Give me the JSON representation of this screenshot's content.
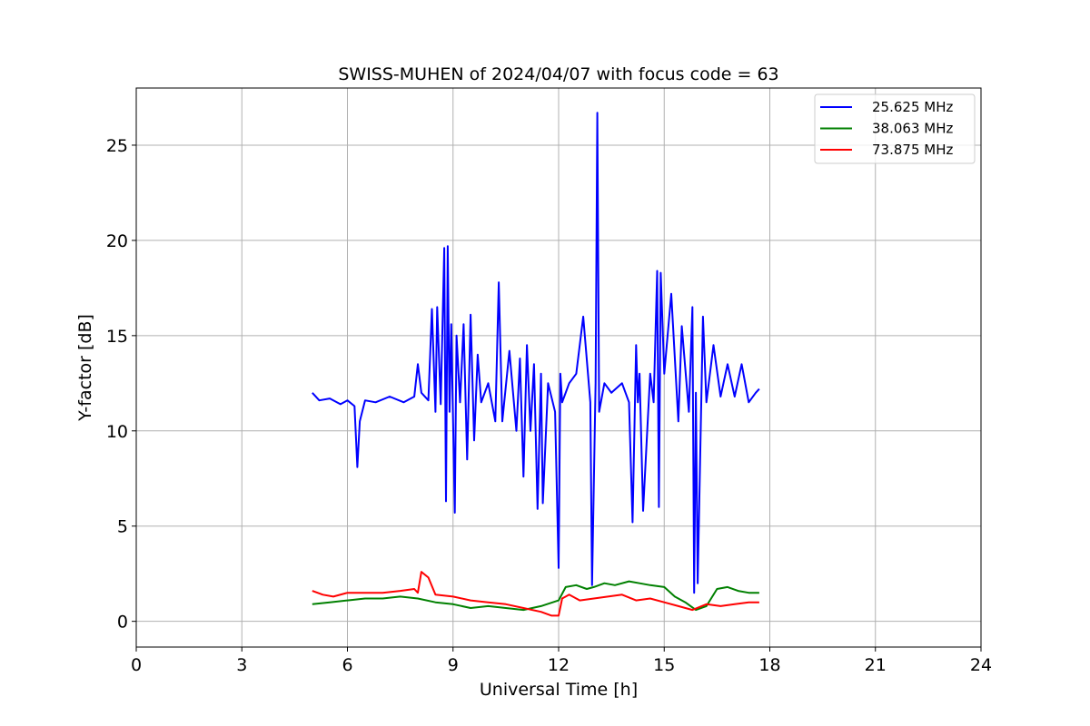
{
  "chart_data": {
    "type": "line",
    "title": "SWISS-MUHEN of 2024/04/07 with focus code = 63",
    "xlabel": "Universal Time [h]",
    "ylabel": "Y-factor [dB]",
    "xlim": [
      0,
      24
    ],
    "ylim": [
      -1.35,
      28
    ],
    "xticks": [
      0,
      3,
      6,
      9,
      12,
      15,
      18,
      21,
      24
    ],
    "yticks": [
      0,
      5,
      10,
      15,
      20,
      25
    ],
    "grid": true,
    "legend_position": "top-right",
    "series": [
      {
        "name": "25.625 MHz",
        "color": "#0000ff",
        "x": [
          5.0,
          5.2,
          5.5,
          5.8,
          6.0,
          6.2,
          6.28,
          6.35,
          6.5,
          6.8,
          7.2,
          7.6,
          7.9,
          8.0,
          8.1,
          8.3,
          8.4,
          8.5,
          8.55,
          8.65,
          8.75,
          8.8,
          8.85,
          8.9,
          8.95,
          9.05,
          9.1,
          9.2,
          9.3,
          9.4,
          9.5,
          9.6,
          9.7,
          9.8,
          10.0,
          10.2,
          10.3,
          10.4,
          10.6,
          10.8,
          10.9,
          11.0,
          11.1,
          11.2,
          11.3,
          11.4,
          11.5,
          11.55,
          11.7,
          11.9,
          12.0,
          12.05,
          12.1,
          12.3,
          12.5,
          12.7,
          12.9,
          12.95,
          13.05,
          13.1,
          13.15,
          13.3,
          13.5,
          13.8,
          14.0,
          14.1,
          14.2,
          14.25,
          14.3,
          14.4,
          14.6,
          14.7,
          14.8,
          14.85,
          14.9,
          15.0,
          15.2,
          15.4,
          15.5,
          15.7,
          15.8,
          15.85,
          15.9,
          15.95,
          16.1,
          16.2,
          16.4,
          16.6,
          16.8,
          17.0,
          17.2,
          17.4,
          17.6,
          17.7
        ],
        "y": [
          12.0,
          11.6,
          11.7,
          11.4,
          11.6,
          11.3,
          8.1,
          10.5,
          11.6,
          11.5,
          11.8,
          11.5,
          11.8,
          13.5,
          12.0,
          11.6,
          16.4,
          11.0,
          16.5,
          11.4,
          19.6,
          6.3,
          19.7,
          11.0,
          15.6,
          5.7,
          15.0,
          11.5,
          15.6,
          8.5,
          16.1,
          9.5,
          14.0,
          11.5,
          12.5,
          10.5,
          17.8,
          10.5,
          14.2,
          10.0,
          13.8,
          7.6,
          14.5,
          10.0,
          13.5,
          5.9,
          13.0,
          6.2,
          12.5,
          11.0,
          2.8,
          13.0,
          11.5,
          12.5,
          13.0,
          16.0,
          11.5,
          1.9,
          12.5,
          26.7,
          11.0,
          12.5,
          12.0,
          12.5,
          11.5,
          5.2,
          14.5,
          11.5,
          13.0,
          5.8,
          13.0,
          11.5,
          18.4,
          6.0,
          18.3,
          13.0,
          17.2,
          10.5,
          15.5,
          11.0,
          16.5,
          1.5,
          12.0,
          2.0,
          16.0,
          11.5,
          14.5,
          11.8,
          13.5,
          11.8,
          13.5,
          11.5,
          12.0,
          12.2
        ]
      },
      {
        "name": "38.063 MHz",
        "color": "#008000",
        "x": [
          5.0,
          5.5,
          6.0,
          6.5,
          7.0,
          7.5,
          8.0,
          8.5,
          9.0,
          9.5,
          10.0,
          10.5,
          11.0,
          11.5,
          12.0,
          12.2,
          12.5,
          12.8,
          13.0,
          13.3,
          13.6,
          14.0,
          14.3,
          14.6,
          15.0,
          15.3,
          15.6,
          15.9,
          16.2,
          16.5,
          16.8,
          17.1,
          17.4,
          17.7
        ],
        "y": [
          0.9,
          1.0,
          1.1,
          1.2,
          1.2,
          1.3,
          1.2,
          1.0,
          0.9,
          0.7,
          0.8,
          0.7,
          0.6,
          0.8,
          1.1,
          1.8,
          1.9,
          1.7,
          1.8,
          2.0,
          1.9,
          2.1,
          2.0,
          1.9,
          1.8,
          1.3,
          1.0,
          0.6,
          0.8,
          1.7,
          1.8,
          1.6,
          1.5,
          1.5
        ]
      },
      {
        "name": "73.875 MHz",
        "color": "#ff0000",
        "x": [
          5.0,
          5.3,
          5.6,
          6.0,
          6.5,
          7.0,
          7.5,
          7.9,
          8.0,
          8.1,
          8.3,
          8.5,
          9.0,
          9.5,
          10.0,
          10.5,
          11.0,
          11.5,
          11.8,
          12.0,
          12.1,
          12.3,
          12.6,
          13.0,
          13.4,
          13.8,
          14.2,
          14.6,
          15.0,
          15.4,
          15.8,
          16.2,
          16.6,
          17.0,
          17.4,
          17.7
        ],
        "y": [
          1.6,
          1.4,
          1.3,
          1.5,
          1.5,
          1.5,
          1.6,
          1.7,
          1.5,
          2.6,
          2.3,
          1.4,
          1.3,
          1.1,
          1.0,
          0.9,
          0.7,
          0.5,
          0.3,
          0.3,
          1.2,
          1.4,
          1.1,
          1.2,
          1.3,
          1.4,
          1.1,
          1.2,
          1.0,
          0.8,
          0.6,
          0.9,
          0.8,
          0.9,
          1.0,
          1.0
        ]
      }
    ]
  }
}
